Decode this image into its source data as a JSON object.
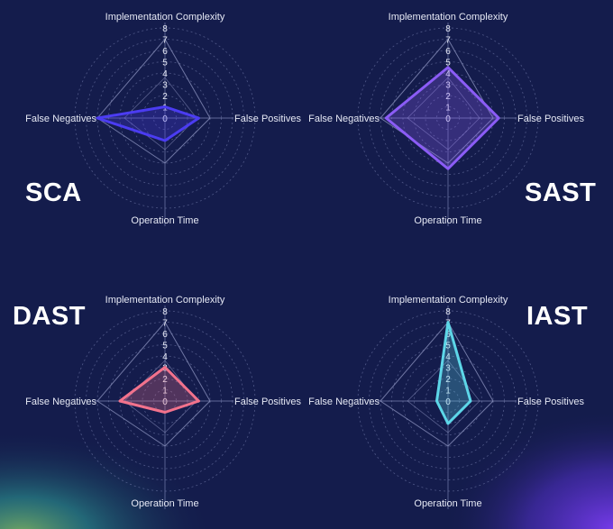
{
  "colors": {
    "background": "#141c4c",
    "grid": "#7f88b8",
    "overall_outline": "#8f96c2",
    "SCA": "#4b3cf2",
    "SAST": "#8b5cf6",
    "DAST": "#f2728c",
    "IAST": "#5dd6e8"
  },
  "chart_data": [
    {
      "type": "radar",
      "name": "SCA",
      "axes": [
        "Implementation Complexity",
        "False Positives",
        "Operation Time",
        "False Negatives"
      ],
      "ticks": [
        "0",
        "1",
        "2",
        "3",
        "4",
        "5",
        "6",
        "7",
        "8"
      ],
      "range": [
        0,
        8
      ],
      "values": [
        1,
        3,
        2,
        6
      ],
      "grid": true
    },
    {
      "type": "radar",
      "name": "SAST",
      "axes": [
        "Implementation Complexity",
        "False Positives",
        "Operation Time",
        "False Negatives"
      ],
      "ticks": [
        "0",
        "1",
        "2",
        "3",
        "4",
        "5",
        "6",
        "7",
        "8"
      ],
      "range": [
        0,
        8
      ],
      "values": [
        4.5,
        4.5,
        4.5,
        5.5
      ],
      "grid": true
    },
    {
      "type": "radar",
      "name": "DAST",
      "axes": [
        "Implementation Complexity",
        "False Positives",
        "Operation Time",
        "False Negatives"
      ],
      "ticks": [
        "0",
        "1",
        "2",
        "3",
        "4",
        "5",
        "6",
        "7",
        "8"
      ],
      "range": [
        0,
        8
      ],
      "values": [
        3,
        3,
        1,
        4
      ],
      "grid": true
    },
    {
      "type": "radar",
      "name": "IAST",
      "axes": [
        "Implementation Complexity",
        "False Positives",
        "Operation Time",
        "False Negatives"
      ],
      "ticks": [
        "0",
        "1",
        "2",
        "3",
        "4",
        "5",
        "6",
        "7",
        "8"
      ],
      "range": [
        0,
        8
      ],
      "values": [
        7,
        2,
        2,
        1
      ],
      "grid": true
    }
  ],
  "overall_outline": [
    7,
    4,
    4,
    6
  ]
}
